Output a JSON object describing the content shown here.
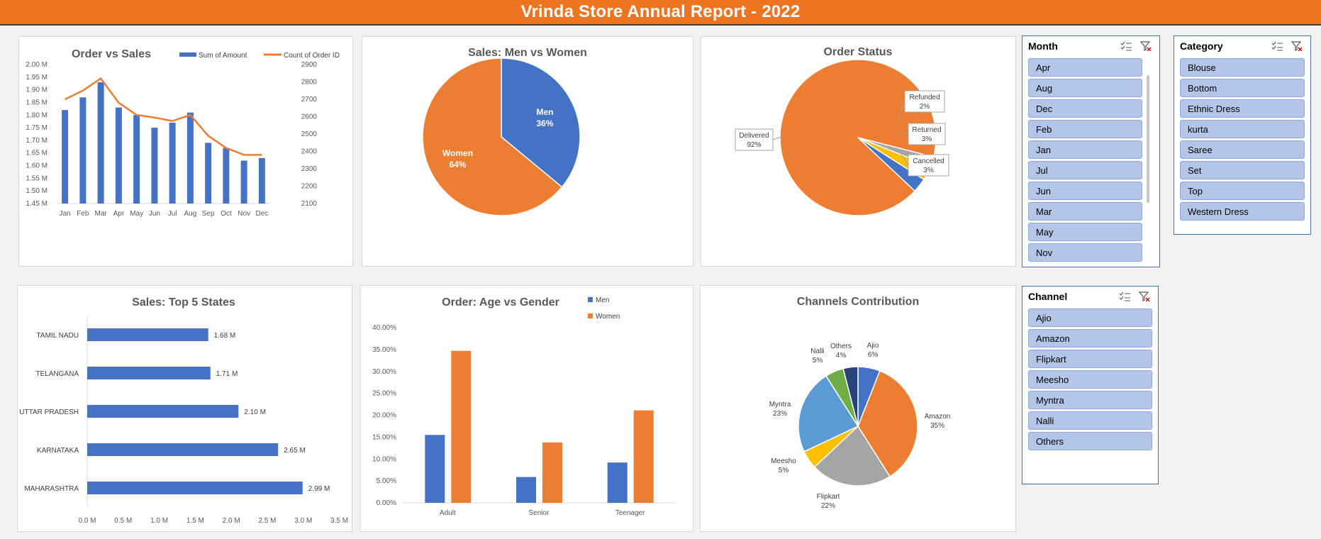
{
  "header": {
    "title": "Vrinda Store Annual Report - 2022"
  },
  "colors": {
    "banner": "#ed7521",
    "blue": "#4472c4",
    "orange": "#ed7d31",
    "gray": "#a5a5a5",
    "yellow": "#ffc000",
    "lightblue": "#5b9bd5",
    "green": "#70ad47",
    "navy": "#264478"
  },
  "charts": {
    "order_sales": {
      "title": "Order vs Sales",
      "legend": [
        "Sum of Amount",
        "Count of Order ID"
      ],
      "y_left_ticks": [
        "2.00 M",
        "1.95 M",
        "1.90 M",
        "1.85 M",
        "1.80 M",
        "1.75 M",
        "1.70 M",
        "1.65 M",
        "1.60 M",
        "1.55 M",
        "1.50 M",
        "1.45 M"
      ],
      "y_right_ticks": [
        "2900",
        "2800",
        "2700",
        "2600",
        "2500",
        "2400",
        "2300",
        "2200",
        "2100"
      ]
    },
    "men_women": {
      "title": "Sales: Men vs Women"
    },
    "order_status": {
      "title": "Order Status"
    },
    "top_states": {
      "title": "Sales: Top 5 States",
      "x_ticks": [
        "0.0 M",
        "0.5 M",
        "1.0 M",
        "1.5 M",
        "2.0 M",
        "2.5 M",
        "3.0 M",
        "3.5 M"
      ]
    },
    "age_gender": {
      "title": "Order: Age vs Gender",
      "y_ticks": [
        "40.00%",
        "35.00%",
        "30.00%",
        "25.00%",
        "20.00%",
        "15.00%",
        "10.00%",
        "5.00%",
        "0.00%"
      ]
    },
    "channels": {
      "title": "Channels Contribution"
    }
  },
  "chart_data": [
    {
      "type": "bar",
      "title": "Order vs Sales",
      "categories": [
        "Jan",
        "Feb",
        "Mar",
        "Apr",
        "May",
        "Jun",
        "Jul",
        "Aug",
        "Sep",
        "Oct",
        "Nov",
        "Dec"
      ],
      "series": [
        {
          "name": "Sum of Amount",
          "type": "bar",
          "axis": "left",
          "values": [
            1.82,
            1.87,
            1.93,
            1.83,
            1.8,
            1.75,
            1.77,
            1.81,
            1.69,
            1.67,
            1.62,
            1.63
          ]
        },
        {
          "name": "Count of Order ID",
          "type": "line",
          "axis": "right",
          "values": [
            2700,
            2750,
            2820,
            2680,
            2610,
            2595,
            2575,
            2610,
            2490,
            2420,
            2380,
            2380
          ]
        }
      ],
      "ylim": [
        1.45,
        2.0
      ],
      "y2lim": [
        2100,
        2900
      ],
      "legend": "top-right"
    },
    {
      "type": "pie",
      "title": "Sales: Men vs Women",
      "labels": [
        "Men",
        "Women"
      ],
      "values": [
        36,
        64
      ],
      "value_labels": [
        "36%",
        "64%"
      ],
      "colors": [
        "#4472c4",
        "#ed7d31"
      ]
    },
    {
      "type": "pie",
      "title": "Order Status",
      "labels": [
        "Delivered",
        "Refunded",
        "Returned",
        "Cancelled"
      ],
      "values": [
        92,
        2,
        3,
        3
      ],
      "value_labels": [
        "92%",
        "2%",
        "3%",
        "3%"
      ],
      "colors": [
        "#ed7d31",
        "#a5a5a5",
        "#ffc000",
        "#4472c4"
      ]
    },
    {
      "type": "bar",
      "orientation": "horizontal",
      "title": "Sales: Top 5 States",
      "categories": [
        "TAMIL NADU",
        "TELANGANA",
        "UTTAR PRADESH",
        "KARNATAKA",
        "MAHARASHTRA"
      ],
      "values": [
        1.68,
        1.71,
        2.1,
        2.65,
        2.99
      ],
      "value_labels": [
        "1.68 M",
        "1.71 M",
        "2.10 M",
        "2.65 M",
        "2.99 M"
      ],
      "xlim": [
        0,
        3.5
      ]
    },
    {
      "type": "bar",
      "title": "Order: Age vs Gender",
      "categories": [
        "Adult",
        "Senior",
        "Teenager"
      ],
      "series": [
        {
          "name": "Men",
          "values": [
            15.5,
            5.9,
            9.2
          ]
        },
        {
          "name": "Women",
          "values": [
            34.7,
            13.8,
            21.1
          ]
        }
      ],
      "ylim": [
        0,
        40
      ],
      "legend": "top-right"
    },
    {
      "type": "pie",
      "title": "Channels Contribution",
      "labels": [
        "Ajio",
        "Amazon",
        "Flipkart",
        "Meesho",
        "Myntra",
        "Nalli",
        "Others"
      ],
      "values": [
        6,
        35,
        22,
        5,
        23,
        5,
        4
      ],
      "value_labels": [
        "6%",
        "35%",
        "22%",
        "5%",
        "23%",
        "5%",
        "4%"
      ],
      "colors": [
        "#4472c4",
        "#ed7d31",
        "#a5a5a5",
        "#ffc000",
        "#5b9bd5",
        "#70ad47",
        "#264478"
      ]
    }
  ],
  "slicers": {
    "month": {
      "title": "Month",
      "items": [
        "Apr",
        "Aug",
        "Dec",
        "Feb",
        "Jan",
        "Jul",
        "Jun",
        "Mar",
        "May",
        "Nov"
      ]
    },
    "category": {
      "title": "Category",
      "items": [
        "Blouse",
        "Bottom",
        "Ethnic Dress",
        "kurta",
        "Saree",
        "Set",
        "Top",
        "Western Dress"
      ]
    },
    "channel": {
      "title": "Channel",
      "items": [
        "Ajio",
        "Amazon",
        "Flipkart",
        "Meesho",
        "Myntra",
        "Nalli",
        "Others"
      ]
    }
  }
}
